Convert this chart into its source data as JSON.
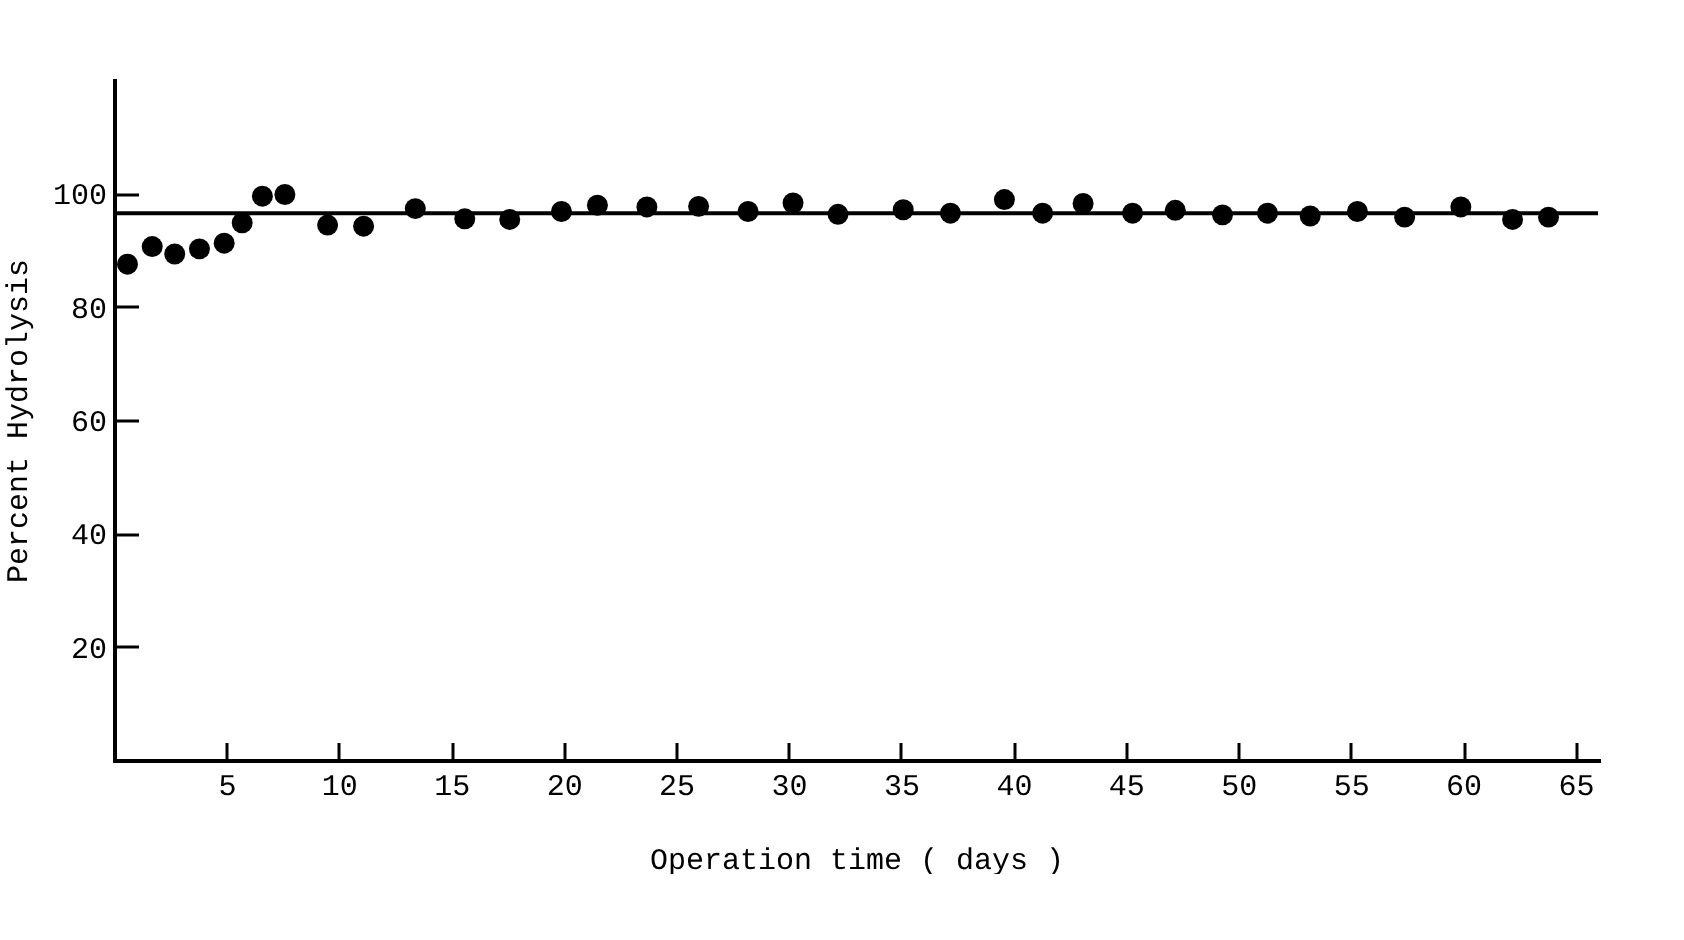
{
  "chart_data": {
    "type": "scatter",
    "xlabel": "Operation time ( days )",
    "ylabel": "Percent Hydrolysis",
    "x": [
      0.6,
      1.7,
      2.7,
      3.8,
      4.9,
      5.7,
      6.6,
      7.6,
      9.5,
      11.1,
      13.4,
      15.6,
      17.6,
      19.9,
      21.5,
      23.7,
      26.0,
      28.2,
      30.2,
      32.2,
      35.1,
      37.2,
      39.6,
      41.3,
      43.1,
      45.3,
      47.2,
      49.3,
      51.3,
      53.2,
      55.3,
      57.4,
      59.9,
      62.2,
      63.8
    ],
    "series": [
      {
        "color": "#000000",
        "values": [
          87.5,
          90.6,
          89.3,
          90.2,
          91.2,
          94.8,
          99.5,
          99.8,
          94.4,
          94.2,
          97.3,
          95.5,
          95.4,
          96.8,
          97.9,
          97.6,
          97.7,
          96.8,
          98.3,
          96.3,
          97.1,
          96.5,
          98.9,
          96.5,
          98.2,
          96.5,
          97.0,
          96.2,
          96.5,
          96.0,
          96.8,
          95.8,
          97.6,
          95.4,
          95.8
        ]
      }
    ],
    "xlim": [
      0,
      66
    ],
    "xticks": [
      5,
      10,
      15,
      20,
      25,
      30,
      35,
      40,
      45,
      50,
      55,
      60,
      65
    ],
    "ylim": [
      0,
      120
    ],
    "yticks": [
      20,
      40,
      60,
      80,
      100
    ],
    "ref_lines": [
      {
        "axis": "y",
        "value": 96.5,
        "color": "#000000"
      }
    ],
    "marker": "circle",
    "grid": false
  }
}
